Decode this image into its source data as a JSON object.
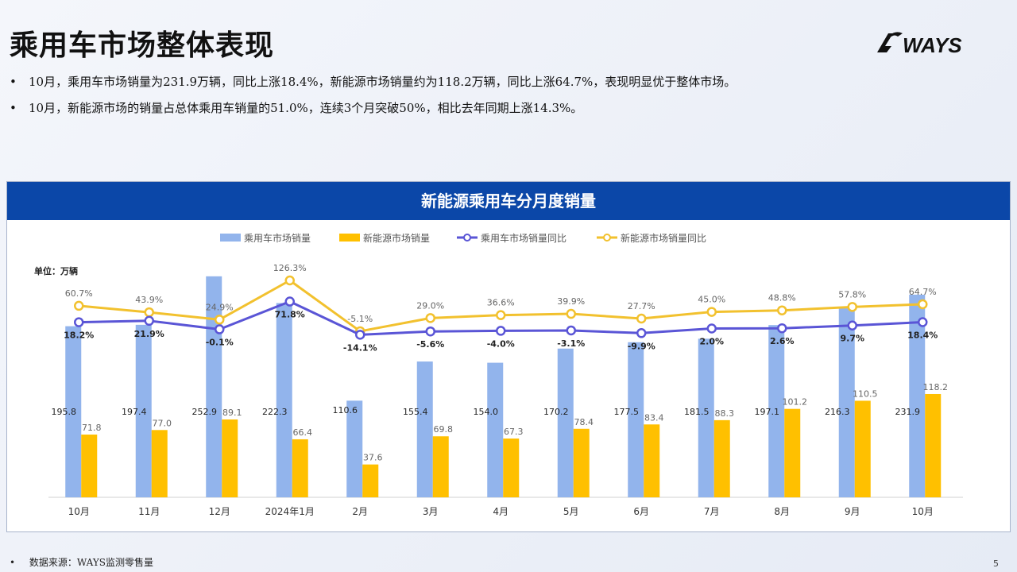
{
  "page": {
    "title": "乘用车市场整体表现",
    "brand": "WAYS",
    "bullets": [
      "10月，乘用车市场销量为231.9万辆，同比上涨18.4%，新能源市场销量约为118.2万辆，同比上涨64.7%，表现明显优于整体市场。",
      "10月，新能源市场的销量占总体乘用车销量的51.0%，连续3个月突破50%，相比去年同期上涨14.3%。"
    ],
    "bullet_symbol": "•",
    "footer_note": "数据来源：WAYS监测零售量",
    "page_number": "5"
  },
  "chart_data": {
    "type": "bar",
    "title": "新能源乘用车分月度销量",
    "unit_label": "单位：万辆",
    "categories": [
      "10月",
      "11月",
      "12月",
      "2024年1月",
      "2月",
      "3月",
      "4月",
      "5月",
      "6月",
      "7月",
      "8月",
      "9月",
      "10月"
    ],
    "series": [
      {
        "name": "乘用车市场销量",
        "type": "bar",
        "color": "#92b4ec",
        "values": [
          195.8,
          197.4,
          252.9,
          222.3,
          110.6,
          155.4,
          154.0,
          170.2,
          177.5,
          181.5,
          197.1,
          216.3,
          231.9
        ]
      },
      {
        "name": "新能源市场销量",
        "type": "bar",
        "color": "#ffc000",
        "values": [
          71.8,
          77.0,
          89.1,
          66.4,
          37.6,
          69.8,
          67.3,
          78.4,
          83.4,
          88.3,
          101.2,
          110.5,
          118.2
        ]
      },
      {
        "name": "乘用车市场销量同比",
        "type": "line",
        "color": "#5a55d6",
        "unit": "%",
        "values": [
          18.2,
          21.9,
          -0.1,
          71.8,
          -14.1,
          -5.6,
          -4.0,
          -3.1,
          -9.9,
          2.0,
          2.6,
          9.7,
          18.4
        ]
      },
      {
        "name": "新能源市场销量同比",
        "type": "line",
        "color": "#f2c12e",
        "unit": "%",
        "values": [
          60.7,
          43.9,
          24.9,
          126.3,
          -5.1,
          29.0,
          36.6,
          39.9,
          27.7,
          45.0,
          48.8,
          57.8,
          64.7
        ]
      }
    ],
    "legend_position": "top-center",
    "grid": false
  }
}
